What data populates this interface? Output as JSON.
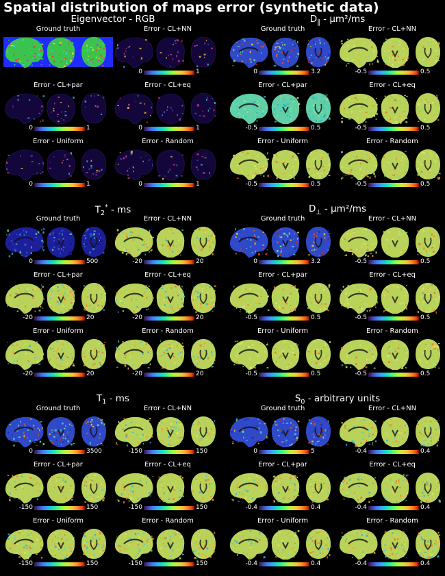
{
  "title": "Spatial distribution of maps error (synthetic data)",
  "groups": [
    {
      "id": "eigvec",
      "title_pre": "Eigenvector - RGB",
      "title_sub": "",
      "title_sup": "",
      "title_post": "",
      "panels": [
        {
          "title": "Ground truth",
          "cmap": "rgb",
          "min": "",
          "max": ""
        },
        {
          "title": "Error - CL+NN",
          "cmap": "dark",
          "min": "0",
          "max": "1"
        },
        {
          "title": "Error - CL+par",
          "cmap": "dark",
          "min": "0",
          "max": "1"
        },
        {
          "title": "Error - CL+eq",
          "cmap": "dark",
          "min": "0",
          "max": "1"
        },
        {
          "title": "Error - Uniform",
          "cmap": "dark",
          "min": "0",
          "max": "1"
        },
        {
          "title": "Error - Random",
          "cmap": "dark",
          "min": "0",
          "max": "1"
        }
      ]
    },
    {
      "id": "dpar",
      "title_pre": "D",
      "title_sub": "‖",
      "title_sup": "",
      "title_post": " - μm²/ms",
      "panels": [
        {
          "title": "Ground truth",
          "cmap": "gt",
          "min": "0",
          "max": "3.2"
        },
        {
          "title": "Error - CL+NN",
          "cmap": "err",
          "min": "-0.5",
          "max": "0.5"
        },
        {
          "title": "Error - CL+par",
          "cmap": "cyan",
          "min": "-0.5",
          "max": "0.5"
        },
        {
          "title": "Error - CL+eq",
          "cmap": "err",
          "min": "-0.5",
          "max": "0.5"
        },
        {
          "title": "Error - Uniform",
          "cmap": "err",
          "min": "-0.5",
          "max": "0.5"
        },
        {
          "title": "Error - Random",
          "cmap": "err",
          "min": "-0.5",
          "max": "0.5"
        }
      ]
    },
    {
      "id": "t2",
      "title_pre": "T",
      "title_sub": "2",
      "title_sup": "*",
      "title_post": " - ms",
      "panels": [
        {
          "title": "Ground truth",
          "cmap": "gtdark",
          "min": "0",
          "max": "500"
        },
        {
          "title": "Error - CL+NN",
          "cmap": "errnoisy",
          "min": "-20",
          "max": "20"
        },
        {
          "title": "Error - CL+par",
          "cmap": "errnoisy",
          "min": "-20",
          "max": "20"
        },
        {
          "title": "Error - CL+eq",
          "cmap": "errnoisy",
          "min": "-20",
          "max": "20"
        },
        {
          "title": "Error - Uniform",
          "cmap": "errnoisy",
          "min": "-20",
          "max": "20"
        },
        {
          "title": "Error - Random",
          "cmap": "errnoisy",
          "min": "-20",
          "max": "20"
        }
      ]
    },
    {
      "id": "dperp",
      "title_pre": "D",
      "title_sub": "⊥",
      "title_sup": "",
      "title_post": " - μm²/ms",
      "panels": [
        {
          "title": "Ground truth",
          "cmap": "gt",
          "min": "0",
          "max": "3.2"
        },
        {
          "title": "Error - CL+NN",
          "cmap": "err",
          "min": "-0.5",
          "max": "0.5"
        },
        {
          "title": "Error - CL+par",
          "cmap": "err",
          "min": "-0.5",
          "max": "0.5"
        },
        {
          "title": "Error - CL+eq",
          "cmap": "err",
          "min": "-0.5",
          "max": "0.5"
        },
        {
          "title": "Error - Uniform",
          "cmap": "err",
          "min": "-0.5",
          "max": "0.5"
        },
        {
          "title": "Error - Random",
          "cmap": "err",
          "min": "-0.5",
          "max": "0.5"
        }
      ]
    },
    {
      "id": "t1",
      "title_pre": "T",
      "title_sub": "1",
      "title_sup": "",
      "title_post": " - ms",
      "panels": [
        {
          "title": "Ground truth",
          "cmap": "gt",
          "min": "0",
          "max": "3500"
        },
        {
          "title": "Error - CL+NN",
          "cmap": "errnoisy",
          "min": "-150",
          "max": "150"
        },
        {
          "title": "Error - CL+par",
          "cmap": "errnoisy",
          "min": "-150",
          "max": "150"
        },
        {
          "title": "Error - CL+eq",
          "cmap": "errnoisy",
          "min": "-150",
          "max": "150"
        },
        {
          "title": "Error - Uniform",
          "cmap": "errnoisy",
          "min": "-150",
          "max": "150"
        },
        {
          "title": "Error - Random",
          "cmap": "errnoisy",
          "min": "-150",
          "max": "150"
        }
      ]
    },
    {
      "id": "s0",
      "title_pre": "S",
      "title_sub": "0",
      "title_sup": "",
      "title_post": " - arbitrary units",
      "panels": [
        {
          "title": "Ground truth",
          "cmap": "gt",
          "min": "0",
          "max": "5"
        },
        {
          "title": "Error - CL+NN",
          "cmap": "errnoisy",
          "min": "-0.4",
          "max": "0.4"
        },
        {
          "title": "Error - CL+par",
          "cmap": "errnoisy",
          "min": "-0.4",
          "max": "0.4"
        },
        {
          "title": "Error - CL+eq",
          "cmap": "errnoisy",
          "min": "-0.4",
          "max": "0.4"
        },
        {
          "title": "Error - Uniform",
          "cmap": "errnoisy",
          "min": "-0.4",
          "max": "0.4"
        },
        {
          "title": "Error - Random",
          "cmap": "errnoisy",
          "min": "-0.4",
          "max": "0.4"
        }
      ]
    }
  ],
  "colors": {
    "background": "#000000",
    "error_fill": "#b9d35a",
    "gt_fill": "#2f49c9",
    "rgb_fill": "#1f2bff"
  }
}
